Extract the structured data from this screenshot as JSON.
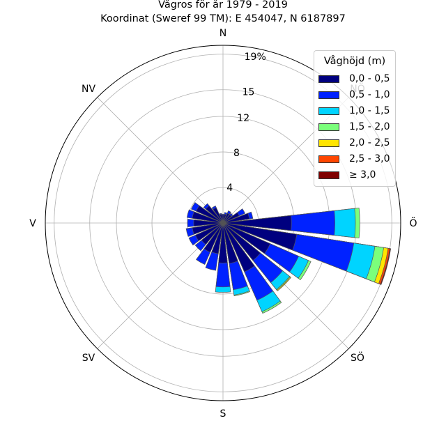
{
  "title_lines": [
    "Vågros för år 1979 - 2019",
    "Koordinat (Sweref 99 TM): E 454047, N 6187897"
  ],
  "chart_data": {
    "type": "polar-bar",
    "title": "Vågros för år 1979 - 2019",
    "subtitle": "Koordinat (Sweref 99 TM): E 454047, N 6187897",
    "direction_labels": [
      "N",
      "NV",
      "V",
      "SV",
      "S",
      "SÖ",
      "Ö",
      "NÖ"
    ],
    "radial_ticks": [
      4,
      8,
      12,
      15,
      19
    ],
    "radial_tick_labels": [
      "4",
      "8",
      "12",
      "15",
      "19%"
    ],
    "rmax": 20,
    "legend_title": "Våghöjd (m)",
    "legend_placement": "top-right",
    "series": [
      {
        "name": "0,0 - 0,5",
        "color": "#00007f"
      },
      {
        "name": "0,5 - 1,0",
        "color": "#0022ff"
      },
      {
        "name": "1,0 - 1,5",
        "color": "#00d4ff"
      },
      {
        "name": "1,5 - 2,0",
        "color": "#7bff7b"
      },
      {
        "name": "2,0 - 2,5",
        "color": "#ffe500"
      },
      {
        "name": "2,5 - 3,0",
        "color": "#ff4600"
      },
      {
        "name": "≥ 3,0",
        "color": "#7f0000"
      }
    ],
    "sectors": [
      {
        "direction_deg": 0,
        "cumulative": [
          0.9,
          1.0,
          1.0,
          1.0,
          1.0,
          1.0,
          1.0
        ]
      },
      {
        "direction_deg": 15,
        "cumulative": [
          1.0,
          1.2,
          1.2,
          1.2,
          1.2,
          1.2,
          1.2
        ]
      },
      {
        "direction_deg": 30,
        "cumulative": [
          1.2,
          1.5,
          1.5,
          1.5,
          1.5,
          1.5,
          1.5
        ]
      },
      {
        "direction_deg": 45,
        "cumulative": [
          1.2,
          1.4,
          1.4,
          1.4,
          1.4,
          1.4,
          1.4
        ]
      },
      {
        "direction_deg": 60,
        "cumulative": [
          2.0,
          2.7,
          2.7,
          2.7,
          2.7,
          2.7,
          2.7
        ]
      },
      {
        "direction_deg": 75,
        "cumulative": [
          3.0,
          3.4,
          3.4,
          3.4,
          3.4,
          3.4,
          3.4
        ]
      },
      {
        "direction_deg": 90,
        "cumulative": [
          7.7,
          12.6,
          14.9,
          15.4,
          15.4,
          15.4,
          15.4
        ]
      },
      {
        "direction_deg": 105,
        "cumulative": [
          8.4,
          14.9,
          17.3,
          18.3,
          18.8,
          19.0,
          19.1
        ]
      },
      {
        "direction_deg": 120,
        "cumulative": [
          5.8,
          9.3,
          10.5,
          10.8,
          10.8,
          10.8,
          10.8
        ]
      },
      {
        "direction_deg": 135,
        "cumulative": [
          5.4,
          8.6,
          9.6,
          9.7,
          9.8,
          9.8,
          9.8
        ]
      },
      {
        "direction_deg": 150,
        "cumulative": [
          6.0,
          9.5,
          10.9,
          11.1,
          11.1,
          11.1,
          11.1
        ]
      },
      {
        "direction_deg": 165,
        "cumulative": [
          4.6,
          7.6,
          8.2,
          8.3,
          8.3,
          8.3,
          8.3
        ]
      },
      {
        "direction_deg": 180,
        "cumulative": [
          4.5,
          7.2,
          7.8,
          7.8,
          7.8,
          7.8,
          7.8
        ]
      },
      {
        "direction_deg": 195,
        "cumulative": [
          3.5,
          5.4,
          5.4,
          5.4,
          5.4,
          5.4,
          5.4
        ]
      },
      {
        "direction_deg": 210,
        "cumulative": [
          3.6,
          5.1,
          5.1,
          5.1,
          5.1,
          5.1,
          5.1
        ]
      },
      {
        "direction_deg": 225,
        "cumulative": [
          3.1,
          4.0,
          4.0,
          4.0,
          4.0,
          4.0,
          4.0
        ]
      },
      {
        "direction_deg": 240,
        "cumulative": [
          3.4,
          4.2,
          4.2,
          4.2,
          4.2,
          4.2,
          4.2
        ]
      },
      {
        "direction_deg": 255,
        "cumulative": [
          3.5,
          4.2,
          4.2,
          4.2,
          4.2,
          4.2,
          4.2
        ]
      },
      {
        "direction_deg": 270,
        "cumulative": [
          3.3,
          4.0,
          4.0,
          4.0,
          4.0,
          4.0,
          4.0
        ]
      },
      {
        "direction_deg": 285,
        "cumulative": [
          3.5,
          4.1,
          4.1,
          4.1,
          4.1,
          4.1,
          4.1
        ]
      },
      {
        "direction_deg": 300,
        "cumulative": [
          3.3,
          3.9,
          3.9,
          3.9,
          3.9,
          3.9,
          3.9
        ]
      },
      {
        "direction_deg": 315,
        "cumulative": [
          2.5,
          2.8,
          2.8,
          2.8,
          2.8,
          2.8,
          2.8
        ]
      },
      {
        "direction_deg": 330,
        "cumulative": [
          1.9,
          2.1,
          2.1,
          2.1,
          2.1,
          2.1,
          2.1
        ]
      },
      {
        "direction_deg": 345,
        "cumulative": [
          1.0,
          1.1,
          1.1,
          1.1,
          1.1,
          1.1,
          1.1
        ]
      }
    ],
    "grid": true
  }
}
